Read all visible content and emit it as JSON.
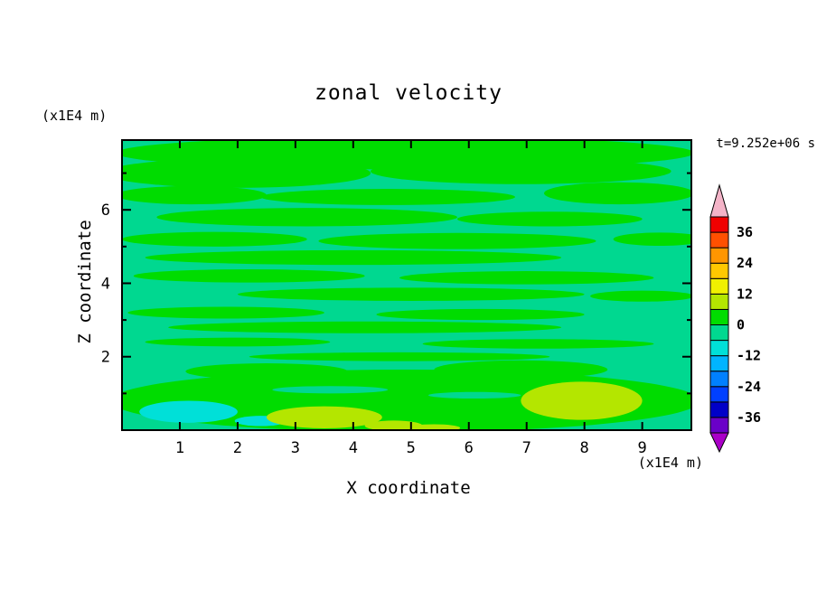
{
  "chart_data": {
    "type": "heatmap",
    "title": "zonal velocity",
    "timestamp": "t=9.252e+06 s",
    "xlabel": "X coordinate",
    "ylabel": "Z coordinate",
    "x_unit": "(x1E4 m)",
    "y_unit": "(x1E4 m)",
    "xlim": [
      0,
      9.85
    ],
    "ylim": [
      0,
      7.9
    ],
    "x_ticks": [
      1,
      2,
      3,
      4,
      5,
      6,
      7,
      8,
      9
    ],
    "y_ticks": [
      2,
      4,
      6
    ],
    "y_minor_ticks": [
      1,
      3,
      5,
      7
    ],
    "grid": false,
    "legend_position": "right-colorbar",
    "colorbar": {
      "levels": [
        -42,
        -36,
        -30,
        -24,
        -18,
        -12,
        -6,
        0,
        6,
        12,
        18,
        24,
        30,
        36,
        42
      ],
      "colors": [
        "#6a00c8",
        "#0000c8",
        "#0040ff",
        "#0080ff",
        "#00b4ff",
        "#00e0d8",
        "#00d890",
        "#00dc00",
        "#b4e600",
        "#f0f000",
        "#ffc800",
        "#ff9600",
        "#ff5000",
        "#f00000"
      ],
      "under_color": "#aa00c8",
      "over_color": "#f4b4c8",
      "tick_labels": [
        36,
        24,
        12,
        0,
        -12,
        -24,
        -36
      ]
    },
    "field": {
      "description": "zonal velocity field: mostly near-zero values; horizontal green streaks (0 to 6) over spring-green background (-6 to 0); cyan patches (-12 to -6) lower left; yellow-green patches (6 to 12) along bottom",
      "background_value": -3,
      "blobs": [
        {
          "x": 4.9,
          "z": 7.55,
          "rx": 5.0,
          "rz": 0.45,
          "v": 3
        },
        {
          "x": 2.0,
          "z": 7.0,
          "rx": 2.3,
          "rz": 0.4,
          "v": 3
        },
        {
          "x": 6.9,
          "z": 7.05,
          "rx": 2.6,
          "rz": 0.35,
          "v": 3
        },
        {
          "x": 1.2,
          "z": 6.4,
          "rx": 1.3,
          "rz": 0.25,
          "v": 3
        },
        {
          "x": 4.6,
          "z": 6.35,
          "rx": 2.2,
          "rz": 0.22,
          "v": 3
        },
        {
          "x": 8.6,
          "z": 6.45,
          "rx": 1.3,
          "rz": 0.3,
          "v": 3
        },
        {
          "x": 3.2,
          "z": 5.8,
          "rx": 2.6,
          "rz": 0.25,
          "v": 3
        },
        {
          "x": 7.4,
          "z": 5.75,
          "rx": 1.6,
          "rz": 0.2,
          "v": 3
        },
        {
          "x": 1.6,
          "z": 5.2,
          "rx": 1.6,
          "rz": 0.2,
          "v": 3
        },
        {
          "x": 5.8,
          "z": 5.15,
          "rx": 2.4,
          "rz": 0.22,
          "v": 3
        },
        {
          "x": 9.3,
          "z": 5.2,
          "rx": 0.8,
          "rz": 0.18,
          "v": 3
        },
        {
          "x": 4.0,
          "z": 4.7,
          "rx": 3.6,
          "rz": 0.2,
          "v": 3
        },
        {
          "x": 2.2,
          "z": 4.2,
          "rx": 2.0,
          "rz": 0.18,
          "v": 3
        },
        {
          "x": 7.0,
          "z": 4.15,
          "rx": 2.2,
          "rz": 0.18,
          "v": 3
        },
        {
          "x": 5.0,
          "z": 3.7,
          "rx": 3.0,
          "rz": 0.18,
          "v": 3
        },
        {
          "x": 9.0,
          "z": 3.65,
          "rx": 0.9,
          "rz": 0.15,
          "v": 3
        },
        {
          "x": 1.8,
          "z": 3.2,
          "rx": 1.7,
          "rz": 0.16,
          "v": 3
        },
        {
          "x": 6.2,
          "z": 3.15,
          "rx": 1.8,
          "rz": 0.15,
          "v": 3
        },
        {
          "x": 4.2,
          "z": 2.8,
          "rx": 3.4,
          "rz": 0.16,
          "v": 3
        },
        {
          "x": 2.0,
          "z": 2.4,
          "rx": 1.6,
          "rz": 0.12,
          "v": 3
        },
        {
          "x": 7.2,
          "z": 2.35,
          "rx": 2.0,
          "rz": 0.13,
          "v": 3
        },
        {
          "x": 4.8,
          "z": 2.0,
          "rx": 2.6,
          "rz": 0.12,
          "v": 3
        },
        {
          "x": 4.9,
          "z": 0.8,
          "rx": 5.1,
          "rz": 0.85,
          "v": 3
        },
        {
          "x": 2.5,
          "z": 1.6,
          "rx": 1.4,
          "rz": 0.22,
          "v": 3
        },
        {
          "x": 6.9,
          "z": 1.65,
          "rx": 1.5,
          "rz": 0.25,
          "v": 3
        },
        {
          "x": 3.6,
          "z": 1.1,
          "rx": 1.0,
          "rz": 0.1,
          "v": -3
        },
        {
          "x": 6.1,
          "z": 0.95,
          "rx": 0.8,
          "rz": 0.09,
          "v": -3
        },
        {
          "x": 1.15,
          "z": 0.5,
          "rx": 0.85,
          "rz": 0.3,
          "v": -9
        },
        {
          "x": 2.4,
          "z": 0.25,
          "rx": 0.45,
          "rz": 0.14,
          "v": -9
        },
        {
          "x": 3.5,
          "z": 0.35,
          "rx": 1.0,
          "rz": 0.3,
          "v": 9
        },
        {
          "x": 4.7,
          "z": 0.12,
          "rx": 0.5,
          "rz": 0.14,
          "v": 9
        },
        {
          "x": 5.4,
          "z": 0.06,
          "rx": 0.45,
          "rz": 0.1,
          "v": 9
        },
        {
          "x": 7.95,
          "z": 0.8,
          "rx": 1.05,
          "rz": 0.52,
          "v": 9
        }
      ]
    }
  }
}
